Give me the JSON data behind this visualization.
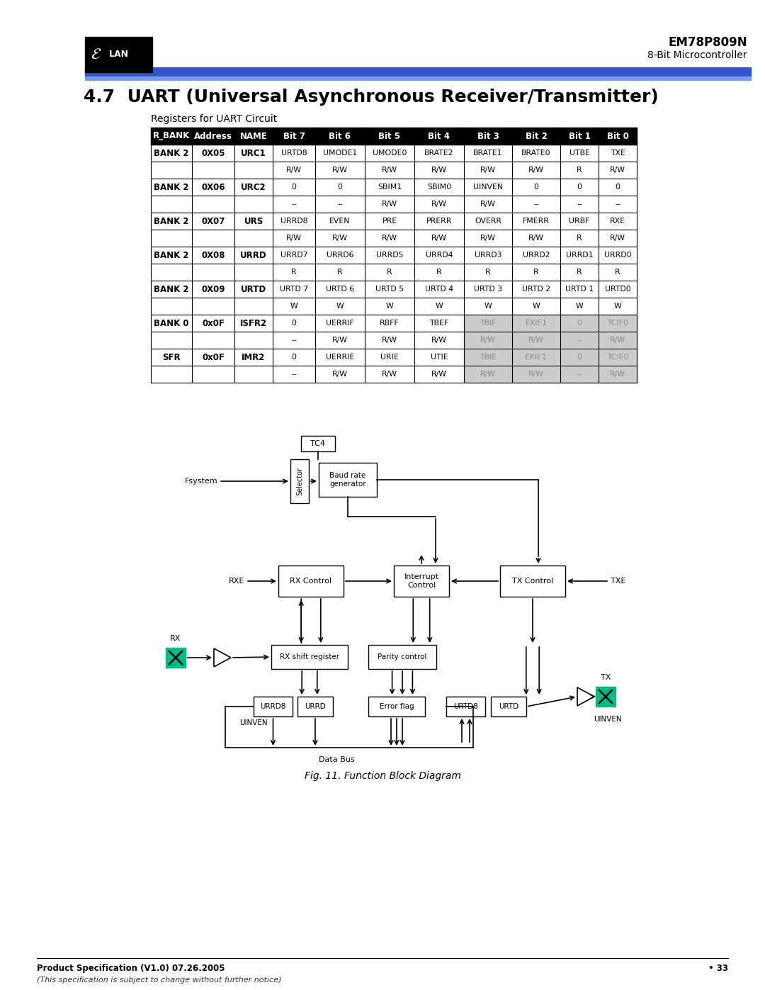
{
  "title": "4.7  UART (Universal Asynchronous Receiver/Transmitter)",
  "subtitle": "Registers for UART Circuit",
  "header_model": "EM78P809N",
  "header_subtitle": "8-Bit Microcontroller",
  "table_headers": [
    "R_BANK",
    "Address",
    "NAME",
    "Bit 7",
    "Bit 6",
    "Bit 5",
    "Bit 4",
    "Bit 3",
    "Bit 2",
    "Bit 1",
    "Bit 0"
  ],
  "table_rows": [
    [
      "BANK 2",
      "0X05",
      "URC1",
      "URTD8",
      "UMODE1",
      "UMODE0",
      "BRATE2",
      "BRATE1",
      "BRATE0",
      "UTBE",
      "TXE"
    ],
    [
      "",
      "",
      "",
      "R/W",
      "R/W",
      "R/W",
      "R/W",
      "R/W",
      "R/W",
      "R",
      "R/W"
    ],
    [
      "BANK 2",
      "0X06",
      "URC2",
      "0",
      "0",
      "SBIM1",
      "SBIM0",
      "UINVEN",
      "0",
      "0",
      "0"
    ],
    [
      "",
      "",
      "",
      "--",
      "--",
      "R/W",
      "R/W",
      "R/W",
      "--",
      "--",
      "--"
    ],
    [
      "BANK 2",
      "0X07",
      "URS",
      "URRD8",
      "EVEN",
      "PRE",
      "PRERR",
      "OVERR",
      "FMERR",
      "URBF",
      "RXE"
    ],
    [
      "",
      "",
      "",
      "R/W",
      "R/W",
      "R/W",
      "R/W",
      "R/W",
      "R/W",
      "R",
      "R/W"
    ],
    [
      "BANK 2",
      "0X08",
      "URRD",
      "URRD7",
      "URRD6",
      "URRD5",
      "URRD4",
      "URRD3",
      "URRD2",
      "URRD1",
      "URRD0"
    ],
    [
      "",
      "",
      "",
      "R",
      "R",
      "R",
      "R",
      "R",
      "R",
      "R",
      "R"
    ],
    [
      "BANK 2",
      "0X09",
      "URTD",
      "URTD 7",
      "URTD 6",
      "URTD 5",
      "URTD 4",
      "URTD 3",
      "URTD 2",
      "URTD 1",
      "URTD0"
    ],
    [
      "",
      "",
      "",
      "W",
      "W",
      "W",
      "W",
      "W",
      "W",
      "W",
      "W"
    ],
    [
      "BANK 0",
      "0x0F",
      "ISFR2",
      "0",
      "UERRIF",
      "RBFF",
      "TBEF",
      "TBIF",
      "EXIF1",
      "0",
      "TCIF0"
    ],
    [
      "",
      "",
      "",
      "--",
      "R/W",
      "R/W",
      "R/W",
      "R/W",
      "R/W",
      "--",
      "R/W"
    ],
    [
      "SFR",
      "0x0F",
      "IMR2",
      "0",
      "UERRIE",
      "URIE",
      "UTIE",
      "TBIE",
      "EXIE1",
      "0",
      "TCIE0"
    ],
    [
      "",
      "",
      "",
      "--",
      "R/W",
      "R/W",
      "R/W",
      "R/W",
      "R/W",
      "--",
      "R/W"
    ]
  ],
  "fig_caption": "Fig. 11. Function Block Diagram",
  "footer_left": "Product Specification (V1.0) 07.26.2005",
  "footer_right": "• 33",
  "footer_italic": "(This specification is subject to change without further notice)"
}
